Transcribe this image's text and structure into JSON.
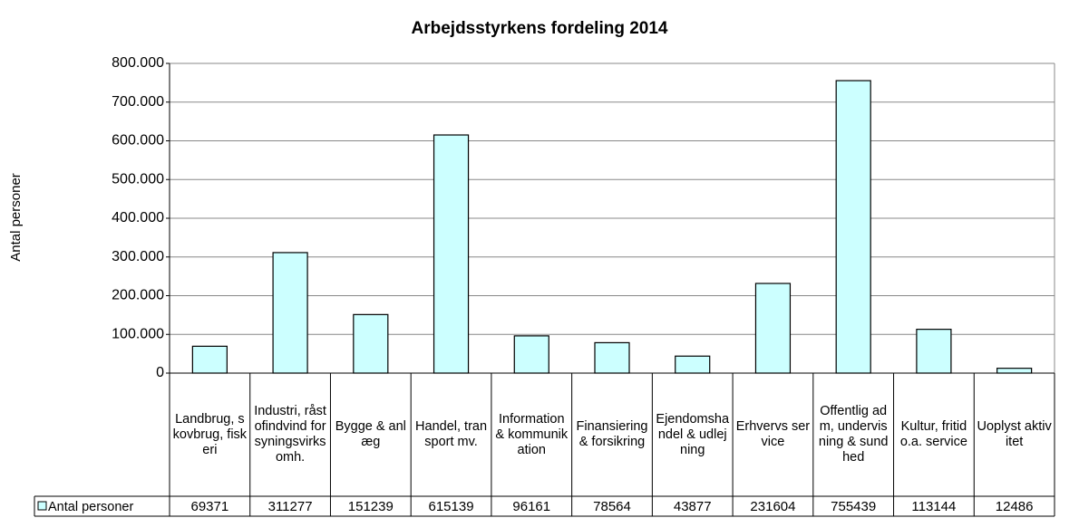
{
  "chart_data": {
    "type": "bar",
    "title": "Arbejdsstyrkens fordeling 2014",
    "y_label": "Antal personer",
    "categories": [
      "Landbrug, skovbrug, fiskeri",
      "Industri, råstofindvind forsyningsvirksomh.",
      "Bygge & anlæg",
      "Handel, transport mv.",
      "Information & kommunikation",
      "Finansiering & forsikring",
      "Ejendomshandel & udlejning",
      "Erhvervs service",
      "Offentlig adm, undervisning & sundhed",
      "Kultur, fritid o.a. service",
      "Uoplyst aktivitet"
    ],
    "series": [
      {
        "name": "Antal personer",
        "color": "#ccffff",
        "values": [
          69371,
          311277,
          151239,
          615139,
          96161,
          78564,
          43877,
          231604,
          755439,
          113144,
          12486
        ]
      }
    ],
    "ylim": [
      0,
      800000
    ],
    "yticks": [
      0,
      {
        "value": 100000,
        "label": "100.000"
      },
      {
        "value": 200000,
        "label": "200.000"
      },
      {
        "value": 300000,
        "label": "300.000"
      },
      {
        "value": 400000,
        "label": "400.000"
      },
      {
        "value": 500000,
        "label": "500.000"
      },
      {
        "value": 600000,
        "label": "600.000"
      },
      {
        "value": 700000,
        "label": "700.000"
      },
      {
        "value": 800000,
        "label": "800.000"
      }
    ],
    "grid": true,
    "data_table": true
  }
}
